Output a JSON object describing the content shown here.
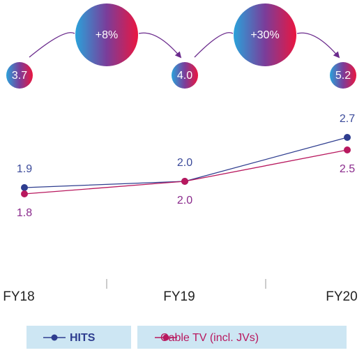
{
  "chart_data": {
    "type": "line",
    "categories": [
      "FY18",
      "FY19",
      "FY20"
    ],
    "series": [
      {
        "name": "HITS",
        "color": "#2e3d8f",
        "values": [
          1.9,
          2.0,
          2.7
        ],
        "value_labels": [
          "1.9",
          "2.0",
          "2.7"
        ]
      },
      {
        "name": "Cable TV (incl. JVs)",
        "color": "#b8185e",
        "values": [
          1.8,
          2.0,
          2.5
        ],
        "value_labels": [
          "1.8",
          "2.0",
          "2.5"
        ]
      }
    ],
    "totals": {
      "values": [
        3.7,
        4.0,
        5.2
      ],
      "value_labels": [
        "3.7",
        "4.0",
        "5.2"
      ]
    },
    "growth": {
      "values": [
        8,
        30
      ],
      "value_labels": [
        "+8%",
        "+30%"
      ]
    }
  }
}
